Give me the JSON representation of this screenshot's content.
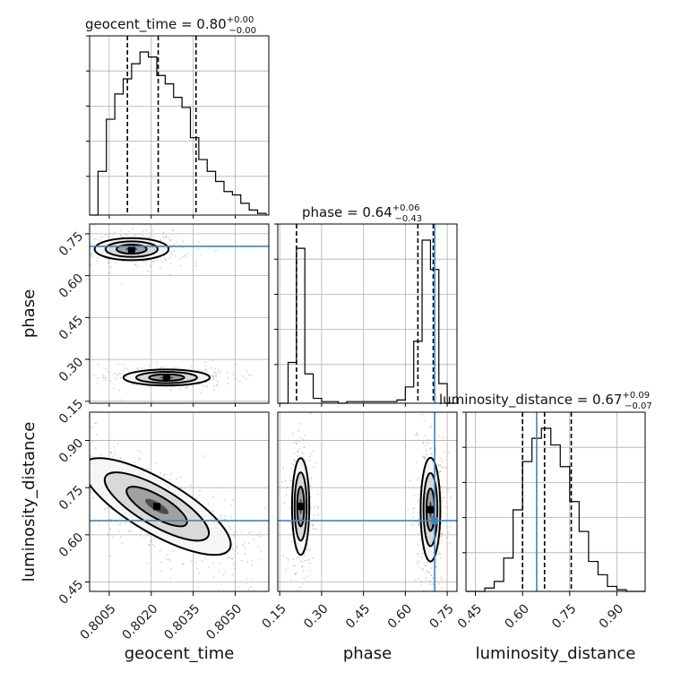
{
  "chart_data": {
    "type": "corner",
    "parameters": [
      "geocent_time",
      "phase",
      "luminosity_distance"
    ],
    "titles": [
      {
        "param": "geocent_time",
        "text": "geocent_time = 0.80",
        "plus": "+0.00",
        "minus": "−0.00"
      },
      {
        "param": "phase",
        "text": "phase = 0.64",
        "plus": "+0.06",
        "minus": "−0.43"
      },
      {
        "param": "luminosity_distance",
        "text": "luminosity_distance = 0.67",
        "plus": "+0.09",
        "minus": "−0.07"
      }
    ],
    "ranges": {
      "geocent_time": [
        0.7998,
        0.8062
      ],
      "phase": [
        0.143,
        0.785
      ],
      "luminosity_distance": [
        0.42,
        0.99
      ]
    },
    "ticks": {
      "geocent_time": {
        "values": [
          0.8005,
          0.802,
          0.8035,
          0.805
        ],
        "labels": [
          "0.8005",
          "0.8020",
          "0.8035",
          "0.8050"
        ]
      },
      "phase": {
        "values": [
          0.15,
          0.3,
          0.45,
          0.6,
          0.75
        ],
        "labels": [
          "0.15",
          "0.30",
          "0.45",
          "0.60",
          "0.75"
        ]
      },
      "luminosity_distance": {
        "values": [
          0.45,
          0.6,
          0.75,
          0.9
        ],
        "labels": [
          "0.45",
          "0.60",
          "0.75",
          "0.90"
        ]
      }
    },
    "truths": {
      "phase": 0.705,
      "luminosity_distance": 0.645
    },
    "quantiles": {
      "geocent_time": [
        0.80115,
        0.80225,
        0.8036
      ],
      "phase": [
        0.21,
        0.645,
        0.7
      ],
      "luminosity_distance": [
        0.6,
        0.67,
        0.755
      ]
    },
    "hist": {
      "geocent_time": {
        "edges": [
          0.7998,
          0.8001,
          0.8004,
          0.8007,
          0.801,
          0.8013,
          0.8016,
          0.8019,
          0.8022,
          0.8025,
          0.8028,
          0.8031,
          0.8034,
          0.8037,
          0.804,
          0.8043,
          0.8046,
          0.8049,
          0.8052,
          0.8055,
          0.8058,
          0.8061
        ],
        "counts": [
          0,
          26,
          57,
          72,
          81,
          90,
          97,
          94,
          83,
          78,
          70,
          64,
          46,
          33,
          26,
          20,
          14,
          12,
          7,
          3,
          1
        ]
      },
      "phase": {
        "edges": [
          0.15,
          0.18,
          0.21,
          0.24,
          0.27,
          0.3,
          0.33,
          0.36,
          0.39,
          0.42,
          0.45,
          0.48,
          0.51,
          0.54,
          0.57,
          0.6,
          0.63,
          0.66,
          0.69,
          0.72,
          0.75,
          0.78
        ],
        "counts": [
          0,
          25,
          95,
          18,
          3,
          1,
          1,
          0,
          1,
          1,
          1,
          1,
          1,
          1,
          2,
          10,
          38,
          100,
          82,
          12,
          0
        ]
      },
      "luminosity_distance": {
        "edges": [
          0.42,
          0.45,
          0.48,
          0.51,
          0.54,
          0.57,
          0.6,
          0.63,
          0.66,
          0.69,
          0.72,
          0.75,
          0.78,
          0.81,
          0.84,
          0.87,
          0.9,
          0.93,
          0.96,
          0.99
        ],
        "counts": [
          0,
          0,
          2,
          6,
          20,
          49,
          78,
          92,
          98,
          88,
          75,
          54,
          36,
          18,
          10,
          3,
          1,
          0,
          0
        ]
      }
    },
    "modes_2d": {
      "geocent_time_vs_phase": [
        {
          "x": 0.8013,
          "y": 0.695,
          "sx": 0.0006,
          "sy": 0.018,
          "w": 0.6
        },
        {
          "x": 0.80255,
          "y": 0.235,
          "sx": 0.0007,
          "sy": 0.013,
          "w": 0.4
        }
      ],
      "geocent_time_vs_luminosity_distance": [
        {
          "x": 0.8022,
          "y": 0.69,
          "sx": 0.0012,
          "sy": 0.07,
          "rho": -0.78,
          "w": 1.0
        }
      ],
      "phase_vs_luminosity_distance": [
        {
          "x": 0.225,
          "y": 0.69,
          "sx": 0.014,
          "sy": 0.07,
          "w": 0.42
        },
        {
          "x": 0.69,
          "y": 0.68,
          "sx": 0.016,
          "sy": 0.075,
          "w": 0.58
        }
      ]
    },
    "grid": true,
    "colors": {
      "hist": "#000000",
      "truth": "#4682b4",
      "grid": "#b0b0b0",
      "scatter": "#808080"
    }
  }
}
